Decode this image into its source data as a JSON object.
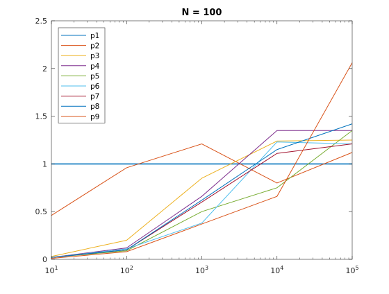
{
  "chart_data": {
    "type": "line",
    "title": "N = 100",
    "xlabel": "",
    "ylabel": "",
    "xscale": "log",
    "xlim": [
      10,
      100000
    ],
    "ylim": [
      0,
      2.5
    ],
    "x": [
      10,
      100,
      1000,
      10000,
      100000
    ],
    "xtick_values": [
      10,
      100,
      1000,
      10000,
      100000
    ],
    "xtick_labels": [
      {
        "base": "10",
        "exp": "1"
      },
      {
        "base": "10",
        "exp": "2"
      },
      {
        "base": "10",
        "exp": "3"
      },
      {
        "base": "10",
        "exp": "4"
      },
      {
        "base": "10",
        "exp": "5"
      }
    ],
    "yticks": [
      0,
      0.5,
      1,
      1.5,
      2,
      2.5
    ],
    "ytick_labels": [
      "0",
      "0.5",
      "1",
      "1.5",
      "2",
      "2.5"
    ],
    "grid": false,
    "legend_position": "top-left",
    "series": [
      {
        "name": "p1",
        "color": "#0072bd",
        "values": [
          1,
          1,
          1,
          1,
          1
        ]
      },
      {
        "name": "p2",
        "color": "#d95319",
        "values": [
          0.46,
          0.96,
          1.21,
          0.8,
          1.12
        ]
      },
      {
        "name": "p3",
        "color": "#edb120",
        "values": [
          0.03,
          0.2,
          0.85,
          1.24,
          1.25
        ]
      },
      {
        "name": "p4",
        "color": "#7e2f8e",
        "values": [
          0.02,
          0.12,
          0.66,
          1.35,
          1.35
        ]
      },
      {
        "name": "p5",
        "color": "#77ac30",
        "values": [
          0.02,
          0.09,
          0.5,
          0.75,
          1.35
        ]
      },
      {
        "name": "p6",
        "color": "#4dbeee",
        "values": [
          0.02,
          0.11,
          0.38,
          1.23,
          1.21
        ]
      },
      {
        "name": "p7",
        "color": "#a2142f",
        "values": [
          0.02,
          0.1,
          0.6,
          1.11,
          1.21
        ]
      },
      {
        "name": "p8",
        "color": "#0072bd",
        "values": [
          0.02,
          0.1,
          0.62,
          1.15,
          1.42
        ]
      },
      {
        "name": "p9",
        "color": "#d95319",
        "values": [
          0.01,
          0.08,
          0.37,
          0.66,
          2.06
        ]
      }
    ]
  }
}
